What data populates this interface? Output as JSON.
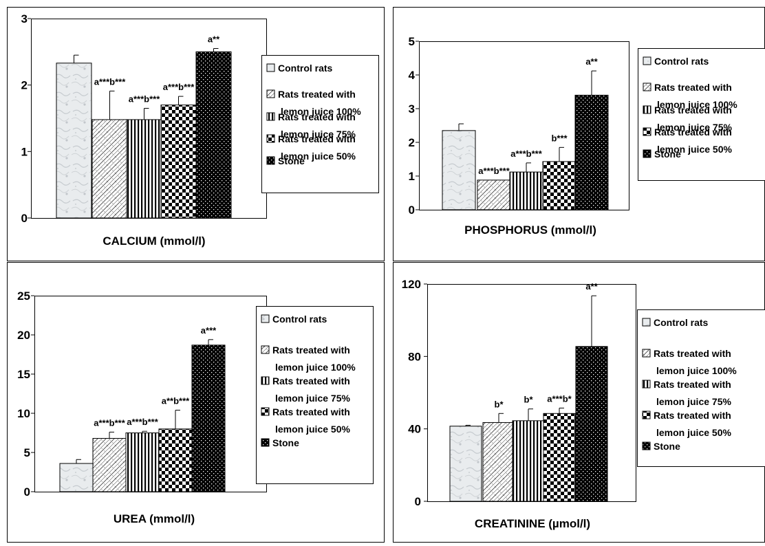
{
  "legend": {
    "entries": [
      {
        "key": "control",
        "lines": [
          "Control rats"
        ]
      },
      {
        "key": "lemon100",
        "lines": [
          "Rats treated with",
          "lemon juice 100%"
        ]
      },
      {
        "key": "lemon75",
        "lines": [
          "Rats treated with",
          "lemon juice 75%"
        ]
      },
      {
        "key": "lemon50",
        "lines": [
          "Rats treated with",
          "lemon juice 50%"
        ]
      },
      {
        "key": "stone",
        "lines": [
          "Stone"
        ]
      }
    ]
  },
  "chart_data": [
    {
      "type": "bar",
      "title": "",
      "xlabel": "CALCIUM (mmol/l)",
      "ylabel": "",
      "ylim": [
        0,
        3
      ],
      "yticks": [
        "0",
        "1",
        "2",
        "3"
      ],
      "categories": [
        "Control rats",
        "Rats treated with lemon juice 100%",
        "Rats treated with lemon juice 75%",
        "Rats treated with lemon juice 50%",
        "Stone"
      ],
      "values": [
        2.33,
        1.48,
        1.48,
        1.7,
        2.5
      ],
      "errors": [
        0.12,
        0.43,
        0.17,
        0.13,
        0.05
      ],
      "labels": [
        "",
        "a***b***",
        "a***b***",
        "a***b***",
        "a**"
      ],
      "grid": false,
      "legend": "right"
    },
    {
      "type": "bar",
      "title": "",
      "xlabel": "PHOSPHORUS (mmol/l)",
      "ylabel": "",
      "ylim": [
        0,
        5
      ],
      "yticks": [
        "0",
        "1",
        "2",
        "3",
        "4",
        "5"
      ],
      "categories": [
        "Control rats",
        "Rats treated with lemon juice 100%",
        "Rats treated with lemon juice 75%",
        "Rats treated with lemon juice 50%",
        "Stone"
      ],
      "values": [
        2.35,
        0.88,
        1.12,
        1.43,
        3.4
      ],
      "errors": [
        0.2,
        0,
        0.27,
        0.42,
        0.72
      ],
      "labels": [
        "",
        "a***b***",
        "a***b***",
        "b***",
        "a**"
      ],
      "grid": false,
      "legend": "right"
    },
    {
      "type": "bar",
      "title": "",
      "xlabel": "UREA (mmol/l)",
      "ylabel": "",
      "ylim": [
        0,
        25
      ],
      "yticks": [
        "0",
        "5",
        "10",
        "15",
        "20",
        "25"
      ],
      "categories": [
        "Control rats",
        "Rats treated with lemon juice 100%",
        "Rats treated with lemon juice 75%",
        "Rats treated with lemon juice 50%",
        "Stone"
      ],
      "values": [
        3.6,
        6.8,
        7.5,
        8.0,
        18.7
      ],
      "errors": [
        0.5,
        0.8,
        0.2,
        2.4,
        0.7
      ],
      "labels": [
        "",
        "a***b***",
        "a***b***",
        "a**b***",
        "a***"
      ],
      "grid": false,
      "legend": "right"
    },
    {
      "type": "bar",
      "title": "",
      "xlabel": "CREATININE (µmol/l)",
      "ylabel": "",
      "ylim": [
        0,
        120
      ],
      "yticks": [
        "0",
        "40",
        "80",
        "120"
      ],
      "categories": [
        "Control rats",
        "Rats treated with lemon juice 100%",
        "Rats treated with lemon juice 75%",
        "Rats treated with lemon juice 50%",
        "Stone"
      ],
      "values": [
        41.5,
        43.5,
        44.5,
        48.5,
        85.5
      ],
      "errors": [
        0.5,
        5,
        6.5,
        3,
        28
      ],
      "labels": [
        "",
        "b*",
        "b*",
        "a***b*",
        "a**"
      ],
      "grid": false,
      "legend": "right"
    }
  ]
}
